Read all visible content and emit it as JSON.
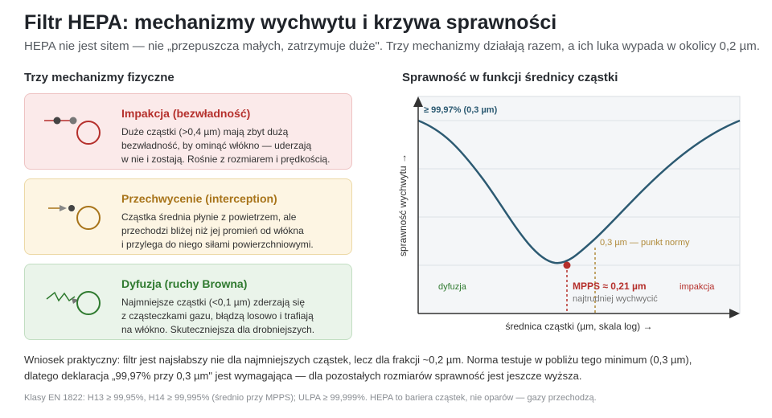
{
  "header": {
    "title": "Filtr HEPA: mechanizmy wychwytu i krzywa sprawności",
    "subtitle": "HEPA nie jest sitem — nie „przepuszcza małych, zatrzymuje duże\". Trzy mechanizmy działają razem, a ich luka wypada w okolicy 0,2 µm."
  },
  "mechanisms": {
    "heading": "Trzy mechanizmy fizyczne",
    "cards": [
      {
        "title": "Impakcja (bezwładność)",
        "lines": [
          "Duże cząstki (>0,4 µm) mają zbyt dużą",
          "bezwładność, by ominąć włókno — uderzają",
          "w nie i zostają. Rośnie z rozmiarem i prędkością."
        ],
        "color": "#b5302c"
      },
      {
        "title": "Przechwycenie (interception)",
        "lines": [
          "Cząstka średnia płynie z powietrzem, ale",
          "przechodzi bliżej niż jej promień od włókna",
          "i przylega do niego siłami powierzchniowymi."
        ],
        "color": "#a8741a"
      },
      {
        "title": "Dyfuzja (ruchy Browna)",
        "lines": [
          "Najmniejsze cząstki (<0,1 µm) zderzają się",
          "z cząsteczkami gazu, błądzą losowo i trafiają",
          "na włókno. Skuteczniejsza dla drobniejszych."
        ],
        "color": "#2f7a2f"
      }
    ]
  },
  "chart": {
    "heading": "Sprawność w funkcji średnicy cząstki",
    "ylabel": "sprawność wychwytu →",
    "xlabel": "średnica cząstki (µm, skala log) →",
    "peak_label": "≥ 99,97% (0,3 µm)",
    "norm_label": "0,3 µm — punkt normy",
    "mpps_label": "MPPS ≈ 0,21 µm",
    "mpps_sub": "najtrudniej wychwycić",
    "region_left": "dyfuzja",
    "region_right": "impakcja",
    "colors": {
      "curve": "#2c5a72",
      "mpps": "#b5302c",
      "norm": "#b08a3a",
      "diffusion": "#2f7a2f",
      "impaction": "#b5302c",
      "peak": "#2c5a72"
    }
  },
  "chart_data": {
    "type": "line",
    "title": "Sprawność w funkcji średnicy cząstki",
    "xlabel": "średnica cząstki (µm, skala log) →",
    "ylabel": "sprawność wychwytu →",
    "x_scale": "log",
    "grid": true,
    "series": [
      {
        "values_shape": "U-shaped efficiency curve, minimum at MPPS ≈ 0,21 µm, ≥ 99,97% at 0,3 µm"
      }
    ],
    "annotations": [
      "≥ 99,97% (0,3 µm)",
      "0,3 µm — punkt normy",
      "MPPS ≈ 0,21 µm",
      "najtrudniej wychwycić",
      "dyfuzja",
      "impakcja"
    ]
  },
  "conclusion": {
    "lines": [
      "Wniosek praktyczny: filtr jest najsłabszy nie dla najmniejszych cząstek, lecz dla frakcji ~0,2 µm. Norma testuje w pobliżu tego minimum (0,3 µm),",
      "dlatego deklaracja „99,97% przy 0,3 µm\" jest wymagająca — dla pozostałych rozmiarów sprawność jest jeszcze wyższa."
    ]
  },
  "footnote": "Klasy EN 1822: H13 ≥ 99,95%, H14 ≥ 99,995% (średnio przy MPPS); ULPA ≥ 99,999%. HEPA to bariera cząstek, nie oparów — gazy przechodzą."
}
